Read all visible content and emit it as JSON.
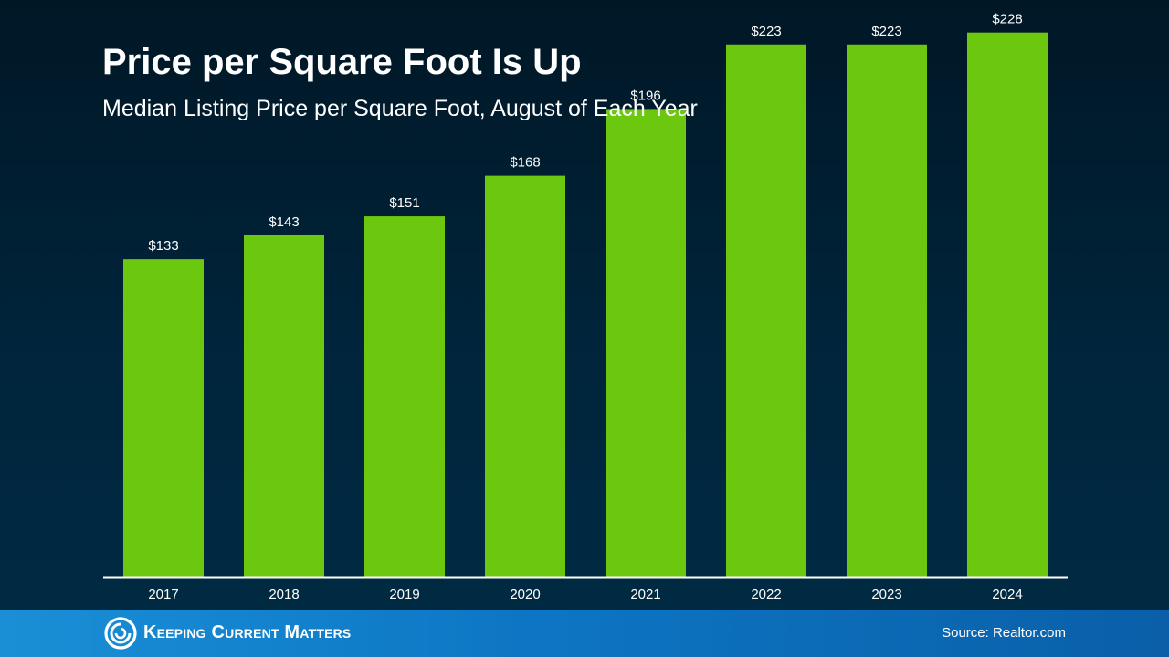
{
  "title": "Price per Square Foot Is Up",
  "subtitle": "Median Listing Price per Square Foot, August of Each Year",
  "chart_data": {
    "type": "bar",
    "title": "Price per Square Foot Is Up",
    "subtitle": "Median Listing Price per Square Foot, August of Each Year",
    "categories": [
      "2017",
      "2018",
      "2019",
      "2020",
      "2021",
      "2022",
      "2023",
      "2024"
    ],
    "values": [
      133,
      143,
      151,
      168,
      196,
      223,
      223,
      228
    ],
    "labels": [
      "$133",
      "$143",
      "$151",
      "$168",
      "$196",
      "$223",
      "$223",
      "$228"
    ],
    "xlabel": "",
    "ylabel": "",
    "ylim": [
      0,
      234
    ],
    "grid": false,
    "legend": "none",
    "bar_color": "#6cc70f",
    "axis_color": "#ffffff"
  },
  "footer": {
    "brand": "Keeping Current Matters",
    "source": "Source: Realtor.com",
    "logo_icon": "swirl-logo-icon",
    "background": "#0d76c4"
  },
  "colors": {
    "background": "#001e31",
    "text": "#ffffff",
    "accent": "#6cc70f"
  }
}
